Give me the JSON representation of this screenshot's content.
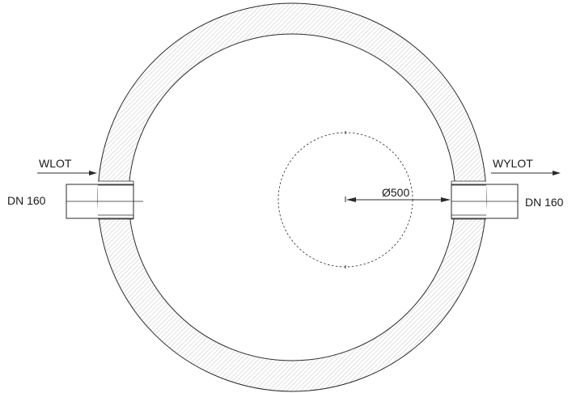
{
  "labels": {
    "inlet": "WLOT",
    "outlet": "WYLOT",
    "inlet_pipe": "DN 160",
    "outlet_pipe": "DN 160",
    "inner_diameter": "Ø500"
  }
}
